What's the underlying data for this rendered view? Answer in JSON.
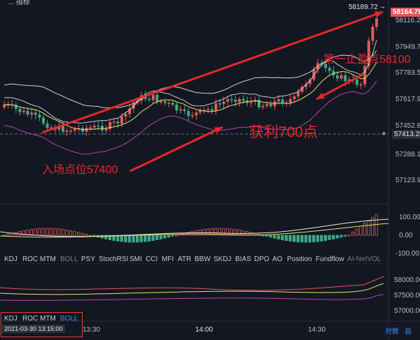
{
  "colors": {
    "up": "#e05a5a",
    "down": "#3fa886",
    "annotation": "#e8262a",
    "bg": "#131722",
    "boll_mid": "#e8e26a",
    "boll_up": "#d8d2c8",
    "boll_low": "#b04aa8",
    "accent": "#3d8bfd"
  },
  "top_partial": "… 指标",
  "price_axis": [
    "58116.2",
    "57949.7",
    "57783.5",
    "57617.9",
    "57452.8",
    "57288.1",
    "57123.9"
  ],
  "price_labels": {
    "high_value": "58189.72",
    "high_arrow": "→",
    "current": "58164.79",
    "crosshair": "57413.25",
    "crosshair_plus": "+"
  },
  "macd_axis": [
    "100.00",
    "0.00",
    "-100.00"
  ],
  "indicator_tabs": [
    "KDJ",
    "ROC",
    "MTM",
    "BOLL",
    "PSY",
    "StochRSI",
    "SMI",
    "CCI",
    "MFI",
    "ATR",
    "BBW",
    "SKDJ",
    "BIAS",
    "DPO",
    "AO",
    "Position",
    "Fundflow",
    "AI-NetVOL"
  ],
  "active_tab": "BOLL",
  "mini_axis": [
    "58000.00",
    "57500.00",
    "57000.00"
  ],
  "mini_tabs": [
    "KDJ",
    "ROC",
    "MTM",
    "BOLL"
  ],
  "time_axis": [
    "13:30",
    "14:00",
    "14:30"
  ],
  "crosshair_time": "2021-03-30 13:15:00",
  "bottom_right": {
    "compare": "对数",
    "auto": "自"
  },
  "annotations": {
    "entry": "入场点位57400",
    "profit": "获利700点",
    "take_profit": "第一止盈点58100"
  }
}
